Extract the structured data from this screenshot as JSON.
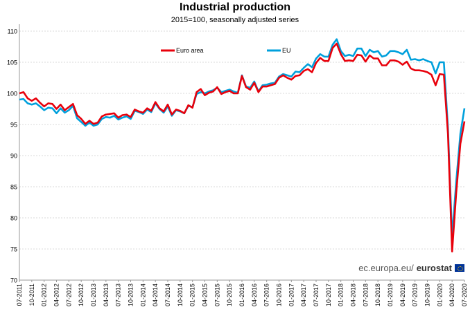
{
  "chart_data": {
    "type": "line",
    "title": "Industrial production",
    "subtitle": "2015=100, seasonally adjusted series",
    "xlabel": "",
    "ylabel": "",
    "ylim": [
      70,
      110
    ],
    "y_ticks": [
      70,
      75,
      80,
      85,
      90,
      95,
      100,
      105,
      110
    ],
    "grid": "horizontal",
    "legend_position": "top-center",
    "x_tick_labels": [
      "07-2011",
      "10-2011",
      "01-2012",
      "04-2012",
      "07-2012",
      "10-2012",
      "01-2013",
      "04-2013",
      "07-2013",
      "10-2013",
      "01-2014",
      "04-2014",
      "07-2014",
      "10-2014",
      "01-2015",
      "04-2015",
      "07-2015",
      "10-2015",
      "01-2016",
      "04-2016",
      "07-2016",
      "10-2016",
      "01-2017",
      "04-2017",
      "07-2017",
      "10-2017",
      "01-2018",
      "04-2018",
      "07-2018",
      "10-2018",
      "01-2019",
      "04-2019",
      "07-2019",
      "10-2019",
      "01-2020",
      "04-2020",
      "07-2020"
    ],
    "series": [
      {
        "name": "Euro area",
        "color": "#e8000b",
        "values": [
          100.0,
          100.2,
          99.2,
          98.8,
          99.2,
          98.5,
          97.9,
          98.4,
          98.3,
          97.5,
          98.2,
          97.3,
          97.8,
          98.3,
          96.5,
          95.9,
          95.1,
          95.6,
          95.1,
          95.3,
          96.3,
          96.6,
          96.7,
          96.8,
          96.1,
          96.5,
          96.6,
          96.2,
          97.4,
          97.1,
          96.9,
          97.6,
          97.2,
          98.6,
          97.6,
          97.1,
          98.2,
          96.6,
          97.4,
          97.2,
          96.8,
          98.1,
          97.7,
          100.2,
          100.7,
          99.7,
          100.1,
          100.3,
          101.0,
          99.9,
          100.2,
          100.4,
          100.0,
          100.0,
          102.8,
          101.0,
          100.6,
          101.7,
          100.2,
          101.1,
          101.1,
          101.3,
          101.5,
          102.5,
          102.9,
          102.5,
          102.2,
          102.8,
          102.9,
          103.6,
          103.9,
          103.4,
          104.9,
          105.7,
          105.2,
          105.2,
          107.3,
          108.0,
          106.3,
          105.2,
          105.3,
          105.2,
          106.2,
          106.1,
          105.1,
          106.1,
          105.6,
          105.6,
          104.5,
          104.5,
          105.3,
          105.3,
          105.1,
          104.6,
          105.1,
          104.0,
          103.7,
          103.7,
          103.6,
          103.4,
          103.0,
          101.3,
          103.1,
          103.0,
          93.5,
          74.6,
          84.0,
          91.9,
          95.5
        ]
      },
      {
        "name": "EU",
        "color": "#00a0dc",
        "values": [
          99.0,
          99.1,
          98.4,
          98.2,
          98.4,
          97.9,
          97.3,
          97.7,
          97.6,
          96.8,
          97.6,
          96.9,
          97.3,
          98.0,
          96.0,
          95.4,
          94.8,
          95.3,
          94.8,
          95.0,
          95.9,
          96.2,
          96.1,
          96.4,
          95.8,
          96.1,
          96.3,
          95.9,
          97.2,
          97.0,
          96.7,
          97.4,
          97.0,
          98.4,
          97.5,
          96.9,
          97.9,
          96.4,
          97.3,
          97.1,
          96.8,
          98.0,
          97.8,
          99.9,
          100.2,
          100.0,
          100.3,
          100.5,
          100.9,
          100.2,
          100.4,
          100.6,
          100.3,
          100.1,
          102.9,
          101.1,
          100.9,
          101.9,
          100.3,
          101.3,
          101.4,
          101.6,
          101.7,
          102.7,
          103.1,
          102.9,
          102.7,
          103.5,
          103.4,
          104.1,
          104.7,
          104.2,
          105.6,
          106.3,
          105.9,
          105.9,
          107.8,
          108.7,
          106.8,
          106.0,
          106.2,
          106.0,
          107.2,
          107.2,
          106.0,
          107.0,
          106.6,
          106.8,
          105.9,
          106.1,
          106.8,
          106.8,
          106.6,
          106.3,
          107.0,
          105.4,
          105.5,
          105.3,
          105.5,
          105.2,
          105.0,
          103.2,
          105.0,
          105.0,
          94.5,
          76.9,
          85.8,
          93.5,
          97.6
        ]
      }
    ]
  },
  "source": {
    "prefix": "ec.europa.eu/",
    "brand": "eurostat"
  }
}
